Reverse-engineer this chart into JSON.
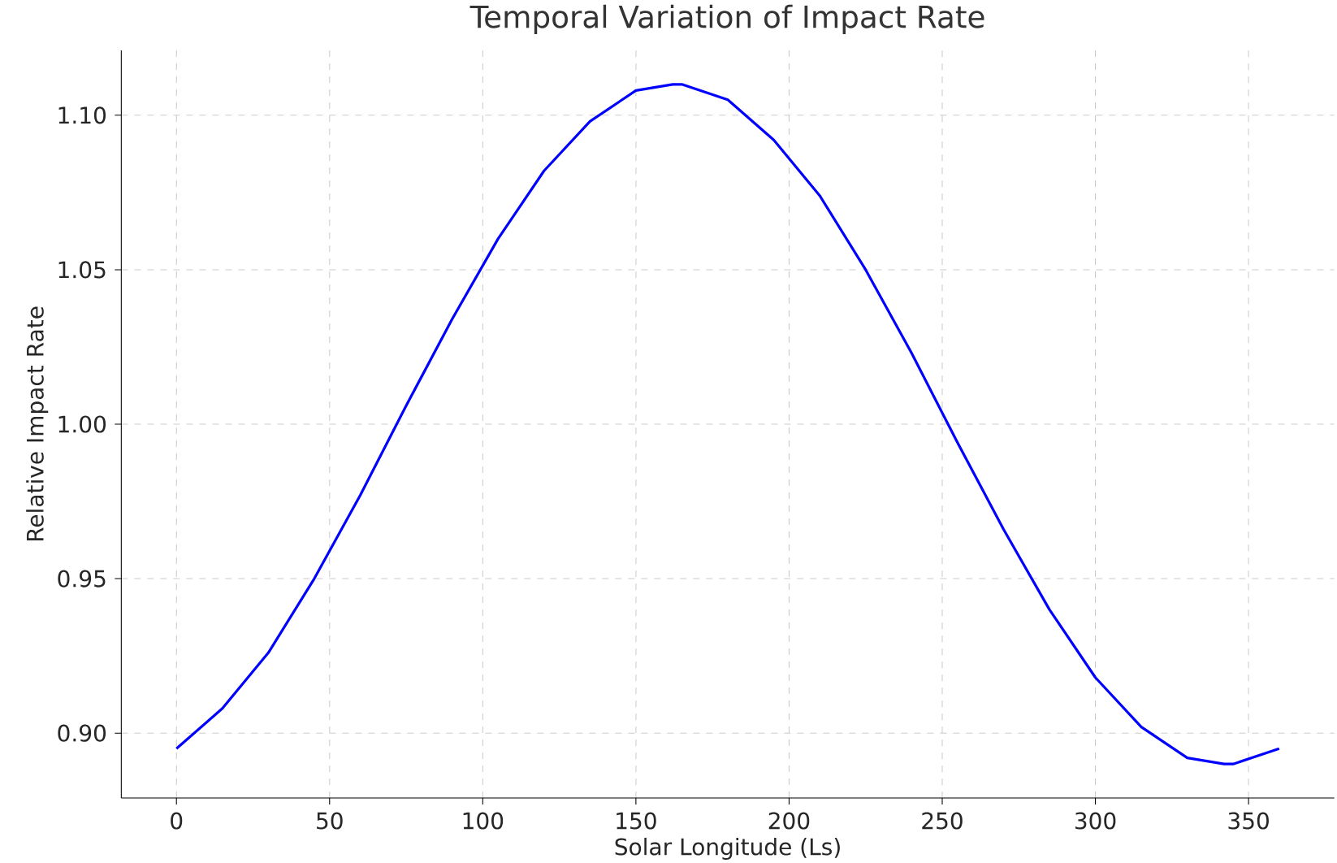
{
  "chart_data": {
    "type": "line",
    "title": "Temporal Variation of Impact Rate",
    "xlabel": "Solar Longitude (Ls)",
    "ylabel": "Relative Impact Rate",
    "x": [
      0,
      15,
      30,
      45,
      60,
      75,
      90,
      105,
      120,
      135,
      150,
      162,
      165,
      180,
      195,
      210,
      225,
      240,
      255,
      270,
      285,
      300,
      315,
      330,
      342,
      345,
      360
    ],
    "series": [
      {
        "color": "#0000ff",
        "values": [
          0.895,
          0.908,
          0.926,
          0.95,
          0.977,
          1.006,
          1.034,
          1.06,
          1.082,
          1.098,
          1.108,
          1.11,
          1.11,
          1.105,
          1.092,
          1.074,
          1.05,
          1.023,
          0.994,
          0.966,
          0.94,
          0.918,
          0.902,
          0.892,
          0.89,
          0.89,
          0.895
        ]
      }
    ],
    "xlim": [
      -18,
      378
    ],
    "ylim": [
      0.879,
      1.121
    ],
    "xticks": [
      0,
      50,
      100,
      150,
      200,
      250,
      300,
      350
    ],
    "yticks": [
      {
        "value": 0.9,
        "label": "0.90"
      },
      {
        "value": 0.95,
        "label": "0.95"
      },
      {
        "value": 1.0,
        "label": "1.00"
      },
      {
        "value": 1.05,
        "label": "1.05"
      },
      {
        "value": 1.1,
        "label": "1.10"
      }
    ],
    "grid": true,
    "line_style": "solid",
    "marker": "none"
  }
}
